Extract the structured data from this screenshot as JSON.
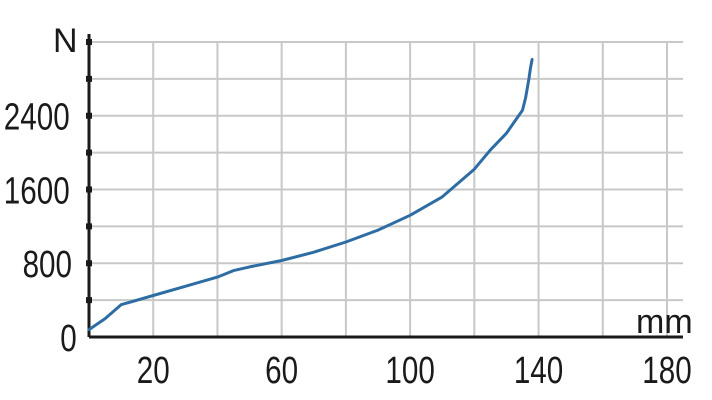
{
  "chart_data": {
    "type": "line",
    "title": "",
    "xlabel": "mm",
    "ylabel": "N",
    "xlim": [
      0,
      180
    ],
    "ylim": [
      0,
      3200
    ],
    "x_grid_step": 20,
    "y_grid_step": 400,
    "x_tick_labels": [
      "20",
      "60",
      "100",
      "140",
      "180"
    ],
    "y_tick_labels": [
      "0",
      "800",
      "1600",
      "2400"
    ],
    "grid": true,
    "legend": "none",
    "colors": {
      "line": "#2e6da4",
      "grid": "#c8c8c8",
      "axis": "#1a1a1a"
    },
    "series": [
      {
        "x": [
          0,
          5,
          10,
          20,
          30,
          40,
          45,
          50,
          60,
          70,
          80,
          90,
          100,
          110,
          120,
          125,
          130,
          133,
          135,
          136,
          136.5,
          137,
          137.5,
          138
        ],
        "y": [
          80,
          200,
          350,
          450,
          550,
          650,
          720,
          760,
          830,
          920,
          1030,
          1160,
          1320,
          1520,
          1820,
          2030,
          2210,
          2360,
          2460,
          2600,
          2700,
          2800,
          2920,
          3010
        ]
      }
    ]
  }
}
